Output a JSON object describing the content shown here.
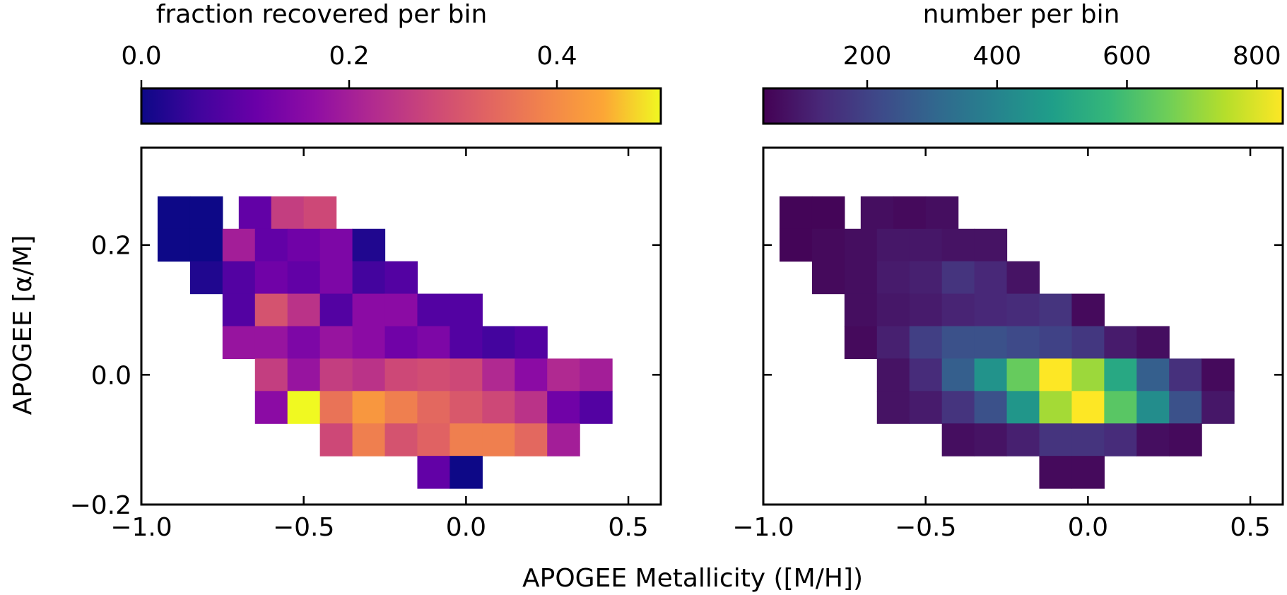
{
  "chart_data": {
    "type": "heatmap",
    "xlabel": "APOGEE Metallicity ([M/H])",
    "ylabel": "APOGEE [α/M]",
    "x_bin_width": 0.1,
    "y_bin_width": 0.05,
    "panels": [
      {
        "id": "left",
        "colorbar_label": "fraction recovered per bin",
        "colormap": "plasma",
        "vmin": 0.0,
        "vmax": 0.5,
        "colorbar_ticks": [
          0.0,
          0.2,
          0.4
        ],
        "colorbar_tick_labels": [
          "0.0",
          "0.2",
          "0.4"
        ],
        "xlim": [
          -1.0,
          0.6
        ],
        "ylim": [
          -0.2,
          0.35
        ],
        "xticks": [
          -1.0,
          -0.5,
          0.0,
          0.5
        ],
        "xtick_labels": [
          "−1.0",
          "−0.5",
          "0.0",
          "0.5"
        ],
        "yticks": [
          -0.2,
          0.0,
          0.2
        ],
        "ytick_labels": [
          "−0.2",
          "0.0",
          "0.2"
        ],
        "show_ytick_labels": true,
        "cells": [
          [
            -0.9,
            0.25,
            0.0
          ],
          [
            -0.8,
            0.25,
            0.0
          ],
          [
            -0.65,
            0.25,
            0.1
          ],
          [
            -0.55,
            0.25,
            0.26
          ],
          [
            -0.45,
            0.25,
            0.28
          ],
          [
            -0.9,
            0.2,
            0.0
          ],
          [
            -0.8,
            0.2,
            0.0
          ],
          [
            -0.7,
            0.2,
            0.2
          ],
          [
            -0.6,
            0.2,
            0.1
          ],
          [
            -0.5,
            0.2,
            0.12
          ],
          [
            -0.4,
            0.2,
            0.14
          ],
          [
            -0.3,
            0.2,
            0.02
          ],
          [
            -0.8,
            0.15,
            0.02
          ],
          [
            -0.7,
            0.15,
            0.08
          ],
          [
            -0.6,
            0.15,
            0.12
          ],
          [
            -0.5,
            0.15,
            0.1
          ],
          [
            -0.4,
            0.15,
            0.14
          ],
          [
            -0.3,
            0.15,
            0.06
          ],
          [
            -0.2,
            0.15,
            0.08
          ],
          [
            -0.7,
            0.1,
            0.08
          ],
          [
            -0.6,
            0.1,
            0.3
          ],
          [
            -0.5,
            0.1,
            0.24
          ],
          [
            -0.4,
            0.1,
            0.08
          ],
          [
            -0.3,
            0.1,
            0.16
          ],
          [
            -0.2,
            0.1,
            0.16
          ],
          [
            -0.1,
            0.1,
            0.08
          ],
          [
            0.0,
            0.1,
            0.08
          ],
          [
            -0.7,
            0.05,
            0.18
          ],
          [
            -0.6,
            0.05,
            0.18
          ],
          [
            -0.5,
            0.05,
            0.14
          ],
          [
            -0.4,
            0.05,
            0.18
          ],
          [
            -0.3,
            0.05,
            0.16
          ],
          [
            -0.2,
            0.05,
            0.12
          ],
          [
            -0.1,
            0.05,
            0.14
          ],
          [
            0.0,
            0.05,
            0.08
          ],
          [
            0.1,
            0.05,
            0.06
          ],
          [
            0.2,
            0.05,
            0.08
          ],
          [
            -0.6,
            0.0,
            0.26
          ],
          [
            -0.5,
            0.0,
            0.18
          ],
          [
            -0.4,
            0.0,
            0.26
          ],
          [
            -0.3,
            0.0,
            0.24
          ],
          [
            -0.2,
            0.0,
            0.28
          ],
          [
            -0.1,
            0.0,
            0.29
          ],
          [
            0.0,
            0.0,
            0.28
          ],
          [
            0.1,
            0.0,
            0.22
          ],
          [
            0.2,
            0.0,
            0.16
          ],
          [
            0.3,
            0.0,
            0.22
          ],
          [
            0.4,
            0.0,
            0.2
          ],
          [
            -0.6,
            -0.05,
            0.16
          ],
          [
            -0.5,
            -0.05,
            0.5
          ],
          [
            -0.4,
            -0.05,
            0.36
          ],
          [
            -0.3,
            -0.05,
            0.42
          ],
          [
            -0.2,
            -0.05,
            0.38
          ],
          [
            -0.1,
            -0.05,
            0.34
          ],
          [
            0.0,
            -0.05,
            0.31
          ],
          [
            0.1,
            -0.05,
            0.28
          ],
          [
            0.2,
            -0.05,
            0.24
          ],
          [
            0.3,
            -0.05,
            0.12
          ],
          [
            0.4,
            -0.05,
            0.08
          ],
          [
            -0.4,
            -0.1,
            0.28
          ],
          [
            -0.3,
            -0.1,
            0.38
          ],
          [
            -0.2,
            -0.1,
            0.3
          ],
          [
            -0.1,
            -0.1,
            0.33
          ],
          [
            0.0,
            -0.1,
            0.38
          ],
          [
            0.1,
            -0.1,
            0.38
          ],
          [
            0.2,
            -0.1,
            0.34
          ],
          [
            0.3,
            -0.1,
            0.2
          ],
          [
            -0.1,
            -0.15,
            0.1
          ],
          [
            0.0,
            -0.15,
            0.0
          ]
        ]
      },
      {
        "id": "right",
        "colorbar_label": "number per bin",
        "colormap": "viridis",
        "vmin": 40,
        "vmax": 840,
        "colorbar_ticks": [
          200,
          400,
          600,
          800
        ],
        "colorbar_tick_labels": [
          "200",
          "400",
          "600",
          "800"
        ],
        "xlim": [
          -1.0,
          0.6
        ],
        "ylim": [
          -0.2,
          0.35
        ],
        "xticks": [
          -1.0,
          -0.5,
          0.0,
          0.5
        ],
        "xtick_labels": [
          "−1.0",
          "−0.5",
          "0.0",
          "0.5"
        ],
        "yticks": [
          -0.2,
          0.0,
          0.2
        ],
        "ytick_labels": [
          "−0.2",
          "0.0",
          "0.2"
        ],
        "show_ytick_labels": false,
        "cells": [
          [
            -0.9,
            0.25,
            50
          ],
          [
            -0.8,
            0.25,
            50
          ],
          [
            -0.65,
            0.25,
            70
          ],
          [
            -0.55,
            0.25,
            60
          ],
          [
            -0.45,
            0.25,
            70
          ],
          [
            -0.9,
            0.2,
            50
          ],
          [
            -0.8,
            0.2,
            60
          ],
          [
            -0.7,
            0.2,
            70
          ],
          [
            -0.6,
            0.2,
            90
          ],
          [
            -0.5,
            0.2,
            90
          ],
          [
            -0.4,
            0.2,
            80
          ],
          [
            -0.3,
            0.2,
            80
          ],
          [
            -0.8,
            0.15,
            60
          ],
          [
            -0.7,
            0.15,
            70
          ],
          [
            -0.6,
            0.15,
            100
          ],
          [
            -0.5,
            0.15,
            110
          ],
          [
            -0.4,
            0.15,
            160
          ],
          [
            -0.3,
            0.15,
            130
          ],
          [
            -0.2,
            0.15,
            80
          ],
          [
            -0.7,
            0.1,
            70
          ],
          [
            -0.6,
            0.1,
            90
          ],
          [
            -0.5,
            0.1,
            100
          ],
          [
            -0.4,
            0.1,
            120
          ],
          [
            -0.3,
            0.1,
            130
          ],
          [
            -0.2,
            0.1,
            140
          ],
          [
            -0.1,
            0.1,
            160
          ],
          [
            0.0,
            0.1,
            60
          ],
          [
            -0.7,
            0.05,
            60
          ],
          [
            -0.6,
            0.05,
            110
          ],
          [
            -0.5,
            0.05,
            190
          ],
          [
            -0.4,
            0.05,
            240
          ],
          [
            -0.3,
            0.05,
            240
          ],
          [
            -0.2,
            0.05,
            220
          ],
          [
            -0.1,
            0.05,
            200
          ],
          [
            0.0,
            0.05,
            170
          ],
          [
            0.1,
            0.05,
            100
          ],
          [
            0.2,
            0.05,
            70
          ],
          [
            -0.6,
            0.0,
            80
          ],
          [
            -0.5,
            0.0,
            140
          ],
          [
            -0.4,
            0.0,
            280
          ],
          [
            -0.3,
            0.0,
            450
          ],
          [
            -0.2,
            0.0,
            650
          ],
          [
            -0.1,
            0.0,
            840
          ],
          [
            0.0,
            0.0,
            720
          ],
          [
            0.1,
            0.0,
            520
          ],
          [
            0.2,
            0.0,
            280
          ],
          [
            0.3,
            0.0,
            150
          ],
          [
            0.4,
            0.0,
            60
          ],
          [
            -0.6,
            -0.05,
            80
          ],
          [
            -0.5,
            -0.05,
            100
          ],
          [
            -0.4,
            -0.05,
            160
          ],
          [
            -0.3,
            -0.05,
            240
          ],
          [
            -0.2,
            -0.05,
            460
          ],
          [
            -0.1,
            -0.05,
            730
          ],
          [
            0.0,
            -0.05,
            840
          ],
          [
            0.1,
            -0.05,
            630
          ],
          [
            0.2,
            -0.05,
            430
          ],
          [
            0.3,
            -0.05,
            240
          ],
          [
            0.4,
            -0.05,
            90
          ],
          [
            -0.4,
            -0.1,
            70
          ],
          [
            -0.3,
            -0.1,
            80
          ],
          [
            -0.2,
            -0.1,
            110
          ],
          [
            -0.1,
            -0.1,
            160
          ],
          [
            0.0,
            -0.1,
            160
          ],
          [
            0.1,
            -0.1,
            140
          ],
          [
            0.2,
            -0.1,
            70
          ],
          [
            0.3,
            -0.1,
            60
          ],
          [
            -0.1,
            -0.15,
            60
          ],
          [
            0.0,
            -0.15,
            60
          ]
        ]
      }
    ]
  }
}
